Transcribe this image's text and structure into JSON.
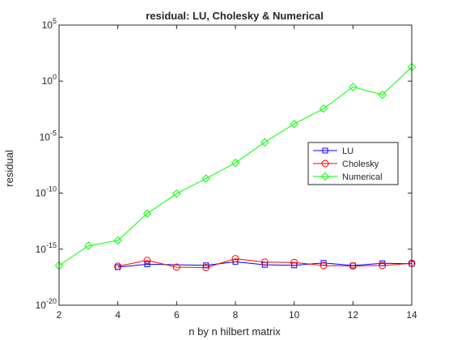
{
  "chart_data": {
    "type": "line",
    "title": "residual: LU, Cholesky & Numerical",
    "xlabel": "n by n hilbert matrix",
    "ylabel": "residual",
    "xlim": [
      2,
      14
    ],
    "ylim": [
      1e-20,
      100000.0
    ],
    "yscale": "log",
    "grid": false,
    "legend_position": "right",
    "x_ticks": [
      2,
      4,
      6,
      8,
      10,
      12,
      14
    ],
    "y_ticks": [
      {
        "value": 1e-20,
        "base": "10",
        "exp": "-20"
      },
      {
        "value": 1e-15,
        "base": "10",
        "exp": "-15"
      },
      {
        "value": 1e-10,
        "base": "10",
        "exp": "-10"
      },
      {
        "value": 1e-05,
        "base": "10",
        "exp": "-5"
      },
      {
        "value": 1.0,
        "base": "10",
        "exp": "0"
      },
      {
        "value": 100000.0,
        "base": "10",
        "exp": "5"
      }
    ],
    "series": [
      {
        "name": "LU",
        "color": "#0000ff",
        "marker": "square",
        "x": [
          4,
          5,
          7,
          8,
          9,
          10,
          11,
          12,
          13,
          14
        ],
        "y": [
          2.5e-17,
          4.5e-17,
          3.6e-17,
          7.5e-17,
          4e-17,
          3.6e-17,
          6e-17,
          3.5e-17,
          5.5e-17,
          5e-17
        ]
      },
      {
        "name": "Cholesky",
        "color": "#ff0000",
        "marker": "circle",
        "x": [
          4,
          5,
          6,
          7,
          8,
          9,
          10,
          11,
          12,
          13,
          14
        ],
        "y": [
          3e-17,
          1e-16,
          2.5e-17,
          2.3e-17,
          1.4e-16,
          7e-17,
          6.5e-17,
          3.5e-17,
          3.2e-17,
          3.5e-17,
          5.5e-17
        ]
      },
      {
        "name": "Numerical",
        "color": "#00ff00",
        "marker": "diamond",
        "x": [
          2,
          3,
          4,
          5,
          6,
          7,
          8,
          9,
          10,
          11,
          12,
          13,
          14
        ],
        "y": [
          3.5e-17,
          2e-15,
          6e-15,
          1.5e-12,
          9e-11,
          2e-09,
          5e-08,
          3.5e-06,
          0.00015,
          0.0035,
          0.3,
          0.06,
          18.0
        ]
      }
    ]
  }
}
